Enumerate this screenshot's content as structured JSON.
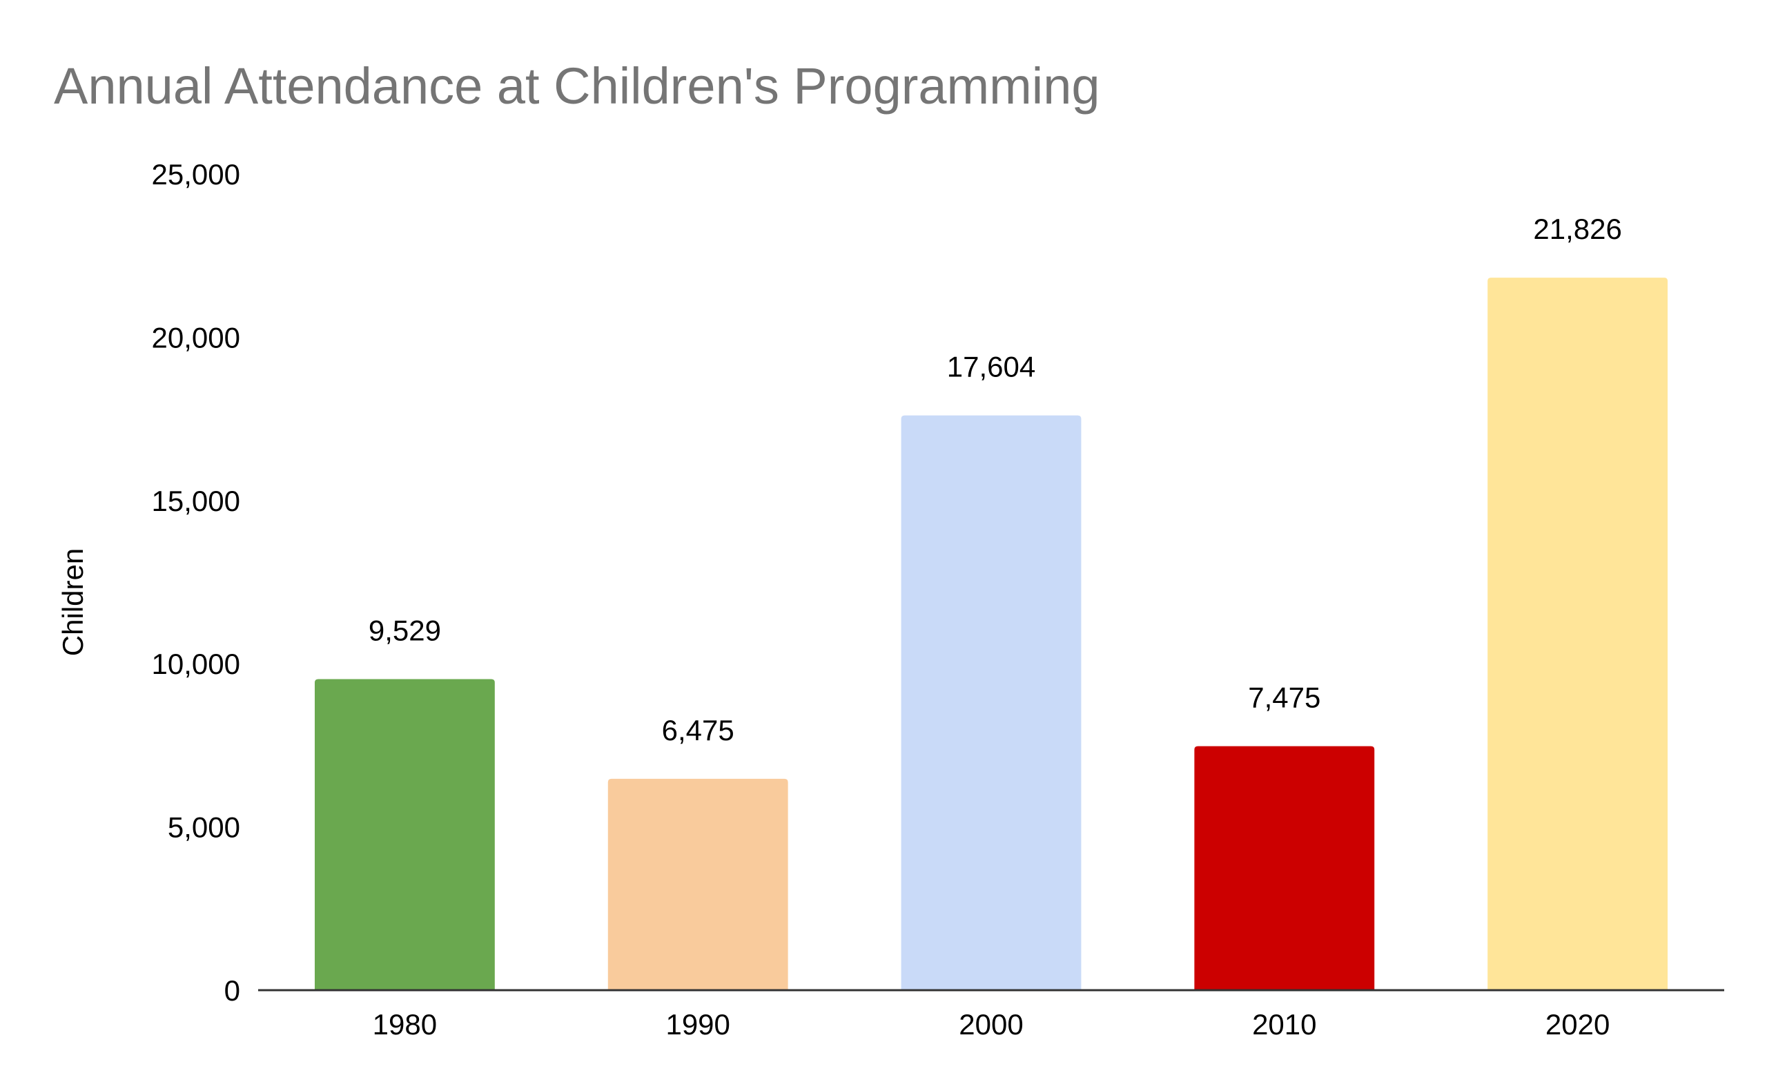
{
  "chart_data": {
    "type": "bar",
    "title": "Annual Attendance at Children's Programming",
    "xlabel": "",
    "ylabel": "Children",
    "categories": [
      "1980",
      "1990",
      "2000",
      "2010",
      "2020"
    ],
    "values": [
      9529,
      6475,
      17604,
      7475,
      21826
    ],
    "value_labels": [
      "9,529",
      "6,475",
      "17,604",
      "7,475",
      "21,826"
    ],
    "colors": [
      "#6aa84f",
      "#f9cb9c",
      "#c9daf8",
      "#cc0000",
      "#ffe599"
    ],
    "ylim": [
      0,
      25000
    ],
    "yticks": [
      0,
      5000,
      10000,
      15000,
      20000,
      25000
    ],
    "ytick_labels": [
      "0",
      "5,000",
      "10,000",
      "15,000",
      "20,000",
      "25,000"
    ],
    "grid": false,
    "legend": "none"
  }
}
